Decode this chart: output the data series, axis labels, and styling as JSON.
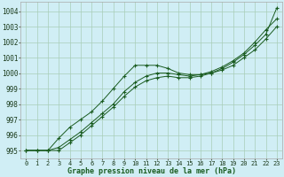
{
  "background_color": "#d0eef5",
  "grid_color": "#a8cdb8",
  "line_color": "#1a5c20",
  "xlabel": "Graphe pression niveau de la mer (hPa)",
  "xlabel_fontsize": 6.0,
  "ylabel_fontsize": 5.5,
  "tick_fontsize": 5.0,
  "xlim": [
    -0.5,
    23.5
  ],
  "ylim": [
    994.5,
    1004.6
  ],
  "yticks": [
    995,
    996,
    997,
    998,
    999,
    1000,
    1001,
    1002,
    1003,
    1004
  ],
  "xticks": [
    0,
    1,
    2,
    3,
    4,
    5,
    6,
    7,
    8,
    9,
    10,
    11,
    12,
    13,
    14,
    15,
    16,
    17,
    18,
    19,
    20,
    21,
    22,
    23
  ],
  "series1": [
    995.0,
    995.0,
    995.0,
    995.8,
    996.5,
    997.0,
    997.5,
    998.2,
    999.0,
    999.8,
    1000.5,
    1000.5,
    1000.5,
    1000.3,
    1000.0,
    999.9,
    999.9,
    1000.0,
    1000.2,
    1000.5,
    1001.0,
    1001.5,
    1002.2,
    1003.0
  ],
  "series2": [
    995.0,
    995.0,
    995.0,
    995.2,
    995.7,
    996.2,
    996.8,
    997.4,
    998.0,
    998.8,
    999.4,
    999.8,
    1000.0,
    1000.0,
    999.9,
    999.8,
    999.9,
    1000.1,
    1000.4,
    1000.8,
    1001.3,
    1002.0,
    1002.8,
    1003.5
  ],
  "series3": [
    995.0,
    995.0,
    995.0,
    995.0,
    995.5,
    996.0,
    996.6,
    997.2,
    997.8,
    998.5,
    999.1,
    999.5,
    999.7,
    999.8,
    999.7,
    999.7,
    999.8,
    1000.0,
    1000.3,
    1000.7,
    1001.2,
    1001.8,
    1002.5,
    1004.2
  ]
}
